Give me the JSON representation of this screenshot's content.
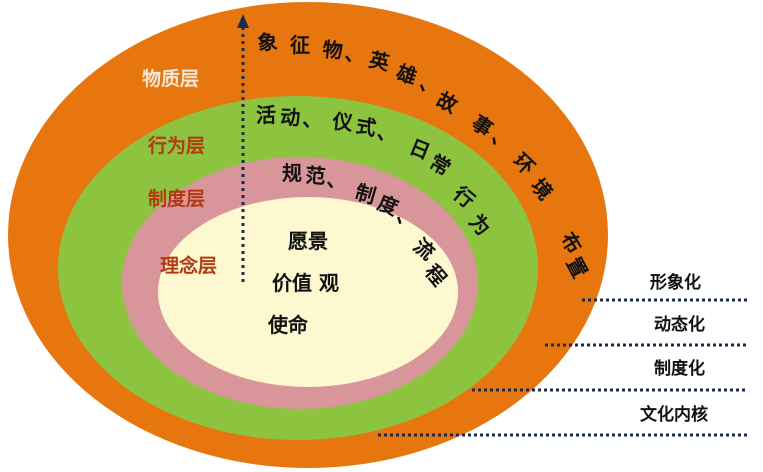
{
  "colors": {
    "outer": "#e8760f",
    "second": "#8dc43f",
    "third": "#d8969a",
    "core": "#fdf8cf",
    "layer_label_outer": "#f5e7d7",
    "layer_label_inner": "#b23a12",
    "dots": "#1a2a52"
  },
  "layers": {
    "material": {
      "label": "物质层",
      "content": [
        "象",
        "征",
        "物",
        "、",
        "英",
        "雄",
        "、",
        "故",
        "事",
        "、",
        "环",
        "境",
        "布",
        "置"
      ]
    },
    "behavior": {
      "label": "行为层",
      "content": [
        "活",
        "动",
        "、",
        "仪",
        "式",
        "、",
        "日",
        "常",
        "行",
        "为"
      ]
    },
    "institution": {
      "label": "制度层",
      "content": [
        "规",
        "范",
        "、",
        "制",
        "度",
        "、",
        "流",
        "程"
      ]
    },
    "concept": {
      "label": "理念层",
      "content": [
        "愿景",
        "价值 观",
        "使命"
      ]
    }
  },
  "tiers": [
    "形象化",
    "动态化",
    "制度化",
    "文化内核"
  ]
}
